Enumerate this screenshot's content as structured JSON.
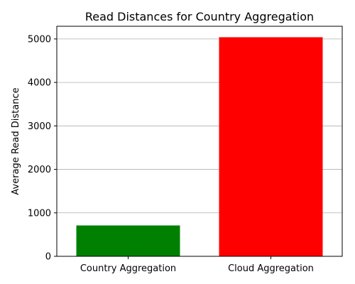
{
  "chart_data": {
    "type": "bar",
    "title": "Read Distances for Country Aggregation",
    "xlabel": "",
    "ylabel": "Average Read Distance",
    "categories": [
      "Country Aggregation",
      "Cloud Aggregation"
    ],
    "values": [
      710,
      5040
    ],
    "colors": [
      "#008000",
      "#ff0000"
    ],
    "ylim": [
      0,
      5292
    ],
    "yticks": [
      0,
      1000,
      2000,
      3000,
      4000,
      5000
    ],
    "grid": "y-axis only"
  }
}
